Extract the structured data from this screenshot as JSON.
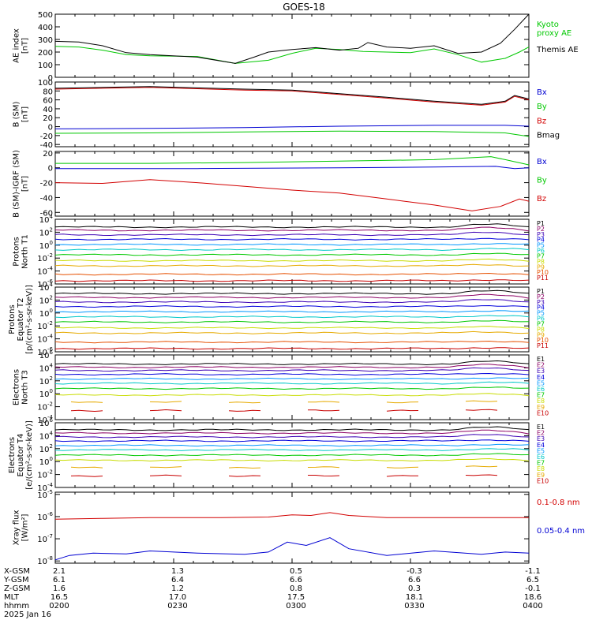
{
  "title": "GOES-18",
  "colors": {
    "black": "#000000",
    "green": "#00c800",
    "blue": "#0000d2",
    "red": "#d20000",
    "P": [
      "#000000",
      "#8c0064",
      "#3c00b4",
      "#0000dc",
      "#0096ff",
      "#00c8c8",
      "#00c800",
      "#c8dc00",
      "#e6aa00",
      "#e65000",
      "#c80000"
    ],
    "E": [
      "#000000",
      "#8c0064",
      "#3c00b4",
      "#0000dc",
      "#0096ff",
      "#00c8c8",
      "#00c800",
      "#c8dc00",
      "#e6aa00",
      "#c80000"
    ]
  },
  "x_axis": {
    "rows": [
      {
        "label": "X-GSM",
        "values": [
          "2.1",
          "1.3",
          "0.5",
          "-0.3",
          "-1.1"
        ]
      },
      {
        "label": "Y-GSM",
        "values": [
          "6.1",
          "6.4",
          "6.6",
          "6.6",
          "6.5"
        ]
      },
      {
        "label": "Z-GSM",
        "values": [
          "1.6",
          "1.2",
          "0.8",
          "0.3",
          "-0.1"
        ]
      },
      {
        "label": "MLT",
        "values": [
          "16.5",
          "17.0",
          "17.5",
          "18.1",
          "18.6"
        ]
      },
      {
        "label": "hhmm",
        "values": [
          "0200",
          "0230",
          "0300",
          "0330",
          "0400"
        ]
      }
    ],
    "date": "2025 Jan 16"
  },
  "chart_data": [
    {
      "type": "line",
      "ylabel": "AE index\n[nT]",
      "ylim": [
        0,
        500
      ],
      "yticks": [
        "0",
        "100",
        "200",
        "300",
        "400",
        "500"
      ],
      "legend": [
        "Kyoto\nproxy AE",
        "Themis AE"
      ],
      "series": [
        {
          "name": "Kyoto proxy AE",
          "color": "green",
          "values": [
            [
              0,
              245
            ],
            [
              0.05,
              240
            ],
            [
              0.1,
              215
            ],
            [
              0.15,
              180
            ],
            [
              0.2,
              170
            ],
            [
              0.3,
              165
            ],
            [
              0.38,
              110
            ],
            [
              0.45,
              135
            ],
            [
              0.5,
              190
            ],
            [
              0.55,
              230
            ],
            [
              0.6,
              220
            ],
            [
              0.65,
              205
            ],
            [
              0.7,
              200
            ],
            [
              0.75,
              195
            ],
            [
              0.8,
              225
            ],
            [
              0.85,
              180
            ],
            [
              0.9,
              120
            ],
            [
              0.95,
              150
            ],
            [
              0.98,
              200
            ],
            [
              1,
              240
            ]
          ]
        },
        {
          "name": "Themis AE",
          "color": "black",
          "values": [
            [
              0,
              285
            ],
            [
              0.05,
              280
            ],
            [
              0.1,
              250
            ],
            [
              0.15,
              195
            ],
            [
              0.2,
              180
            ],
            [
              0.3,
              160
            ],
            [
              0.38,
              110
            ],
            [
              0.42,
              160
            ],
            [
              0.45,
              200
            ],
            [
              0.5,
              220
            ],
            [
              0.55,
              235
            ],
            [
              0.6,
              215
            ],
            [
              0.64,
              230
            ],
            [
              0.66,
              275
            ],
            [
              0.7,
              240
            ],
            [
              0.75,
              230
            ],
            [
              0.8,
              250
            ],
            [
              0.85,
              190
            ],
            [
              0.9,
              200
            ],
            [
              0.94,
              270
            ],
            [
              0.97,
              380
            ],
            [
              1,
              500
            ]
          ]
        }
      ]
    },
    {
      "type": "line",
      "ylabel": "B (SM)\n[nT]",
      "ylim": [
        -45,
        100
      ],
      "yticks": [
        "-40",
        "-20",
        "0",
        "20",
        "40",
        "60",
        "80",
        "100"
      ],
      "legend": [
        "Bx",
        "By",
        "Bz",
        "Bmag"
      ],
      "series": [
        {
          "name": "Bx",
          "color": "blue",
          "values": [
            [
              0,
              -5
            ],
            [
              0.2,
              -4
            ],
            [
              0.4,
              -2
            ],
            [
              0.6,
              1
            ],
            [
              0.8,
              3
            ],
            [
              0.95,
              3
            ],
            [
              1,
              1
            ]
          ]
        },
        {
          "name": "By",
          "color": "green",
          "values": [
            [
              0,
              -15
            ],
            [
              0.2,
              -14
            ],
            [
              0.4,
              -12
            ],
            [
              0.6,
              -10
            ],
            [
              0.8,
              -11
            ],
            [
              0.95,
              -14
            ],
            [
              1,
              -22
            ]
          ]
        },
        {
          "name": "Bz",
          "color": "red",
          "values": [
            [
              0,
              84
            ],
            [
              0.1,
              86
            ],
            [
              0.2,
              88
            ],
            [
              0.3,
              85
            ],
            [
              0.4,
              82
            ],
            [
              0.5,
              80
            ],
            [
              0.6,
              72
            ],
            [
              0.7,
              64
            ],
            [
              0.8,
              55
            ],
            [
              0.9,
              48
            ],
            [
              0.95,
              55
            ],
            [
              0.97,
              68
            ],
            [
              1,
              60
            ]
          ]
        },
        {
          "name": "Bmag",
          "color": "black",
          "values": [
            [
              0,
              86
            ],
            [
              0.1,
              88
            ],
            [
              0.2,
              90
            ],
            [
              0.3,
              87
            ],
            [
              0.4,
              84
            ],
            [
              0.5,
              82
            ],
            [
              0.6,
              74
            ],
            [
              0.7,
              66
            ],
            [
              0.8,
              57
            ],
            [
              0.9,
              50
            ],
            [
              0.95,
              57
            ],
            [
              0.97,
              70
            ],
            [
              1,
              62
            ]
          ]
        }
      ]
    },
    {
      "type": "line",
      "ylabel": "B (SM)-IGRF (SM)\n[nT]",
      "ylim": [
        -65,
        22
      ],
      "yticks": [
        "-60",
        "-40",
        "-20",
        "0",
        "20"
      ],
      "legend": [
        "Bx",
        "By",
        "Bz"
      ],
      "series": [
        {
          "name": "Bx",
          "color": "blue",
          "values": [
            [
              0,
              -1
            ],
            [
              0.3,
              -1
            ],
            [
              0.6,
              0
            ],
            [
              0.8,
              1
            ],
            [
              0.93,
              2
            ],
            [
              0.97,
              -1
            ],
            [
              1,
              0
            ]
          ]
        },
        {
          "name": "By",
          "color": "green",
          "values": [
            [
              0,
              6
            ],
            [
              0.2,
              6
            ],
            [
              0.4,
              7
            ],
            [
              0.6,
              9
            ],
            [
              0.8,
              11
            ],
            [
              0.92,
              15
            ],
            [
              0.95,
              11
            ],
            [
              1,
              4
            ]
          ]
        },
        {
          "name": "Bz",
          "color": "red",
          "values": [
            [
              0,
              -20
            ],
            [
              0.1,
              -21
            ],
            [
              0.2,
              -16
            ],
            [
              0.3,
              -20
            ],
            [
              0.4,
              -25
            ],
            [
              0.5,
              -30
            ],
            [
              0.6,
              -34
            ],
            [
              0.7,
              -42
            ],
            [
              0.8,
              -50
            ],
            [
              0.88,
              -58
            ],
            [
              0.94,
              -52
            ],
            [
              0.98,
              -42
            ],
            [
              1,
              -45
            ]
          ]
        }
      ]
    },
    {
      "type": "line",
      "ylabel": "Protons\nNorth T1",
      "yscale": "log",
      "ylim": [
        -6,
        4
      ],
      "yticks": [
        "10^4",
        "10^2",
        "10^0",
        "10^-2",
        "10^-4",
        "10^-6"
      ],
      "legend": [
        "P1",
        "P2",
        "P3",
        "P4",
        "P5",
        "P6",
        "P7",
        "P8",
        "P9",
        "P10",
        "P11"
      ],
      "series_levels": [
        2.8,
        2.3,
        1.6,
        0.9,
        0.1,
        -0.7,
        -1.5,
        -2.4,
        -3.2,
        -4.5,
        -5.5
      ]
    },
    {
      "type": "line",
      "ylabel": "Protons\nEquator T2\n[p/(cm²-s-sr-keV)]",
      "yscale": "log",
      "ylim": [
        -6,
        4
      ],
      "yticks": [
        "10^4",
        "10^2",
        "10^0",
        "10^-2",
        "10^-4",
        "10^-6"
      ],
      "legend": [
        "P1",
        "P2",
        "P3",
        "P4",
        "P5",
        "P6",
        "P7",
        "P8",
        "P9",
        "P10",
        "P11"
      ],
      "series_levels": [
        3.0,
        2.4,
        1.7,
        1.0,
        0.2,
        -0.6,
        -1.4,
        -2.3,
        -3.1,
        -4.5,
        -5.5
      ]
    },
    {
      "type": "line",
      "ylabel": "Electrons\nNorth T3",
      "yscale": "log",
      "ylim": [
        -4,
        6
      ],
      "yticks": [
        "10^6",
        "10^4",
        "10^2",
        "10^0",
        "10^-2",
        "10^-4"
      ],
      "legend": [
        "E1",
        "E2",
        "E3",
        "E4",
        "E5",
        "E6",
        "E7",
        "E8",
        "E9",
        "E10"
      ],
      "series_levels": [
        4.6,
        4.1,
        3.6,
        3.0,
        2.3,
        1.6,
        0.8,
        -0.2,
        -1.3,
        -2.6
      ]
    },
    {
      "type": "line",
      "ylabel": "Electrons\nEquator T4\n[e/(cm²-s-sr-keV)]",
      "yscale": "log",
      "ylim": [
        -4,
        6
      ],
      "yticks": [
        "10^6",
        "10^4",
        "10^2",
        "10^0",
        "10^-2",
        "10^-4"
      ],
      "legend": [
        "E1",
        "E2",
        "E3",
        "E4",
        "E5",
        "E6",
        "E7",
        "E8",
        "E9",
        "E10"
      ],
      "series_levels": [
        4.9,
        4.4,
        3.8,
        3.2,
        2.5,
        1.8,
        1.0,
        0.2,
        -0.9,
        -2.2
      ]
    },
    {
      "type": "line",
      "ylabel": "Xray flux\n[W/m²]",
      "yscale": "log",
      "ylim": [
        -8.1,
        -4.9
      ],
      "yticks": [
        "10^-5",
        "10^-6",
        "10^-7",
        "10^-8"
      ],
      "legend": [
        "0.1-0.8 nm",
        "0.05-0.4 nm"
      ],
      "series": [
        {
          "name": "0.1-0.8 nm",
          "color": "red",
          "values": [
            [
              0,
              -6.12
            ],
            [
              0.1,
              -6.08
            ],
            [
              0.2,
              -6.05
            ],
            [
              0.35,
              -6.05
            ],
            [
              0.45,
              -6.02
            ],
            [
              0.5,
              -5.92
            ],
            [
              0.54,
              -5.95
            ],
            [
              0.58,
              -5.82
            ],
            [
              0.62,
              -5.95
            ],
            [
              0.7,
              -6.05
            ],
            [
              0.85,
              -6.05
            ],
            [
              1,
              -6.05
            ]
          ]
        },
        {
          "name": "0.05-0.4 nm",
          "color": "blue",
          "values": [
            [
              0,
              -7.95
            ],
            [
              0.03,
              -7.75
            ],
            [
              0.08,
              -7.65
            ],
            [
              0.15,
              -7.68
            ],
            [
              0.2,
              -7.55
            ],
            [
              0.3,
              -7.65
            ],
            [
              0.4,
              -7.7
            ],
            [
              0.45,
              -7.6
            ],
            [
              0.49,
              -7.15
            ],
            [
              0.53,
              -7.3
            ],
            [
              0.58,
              -6.95
            ],
            [
              0.62,
              -7.45
            ],
            [
              0.7,
              -7.75
            ],
            [
              0.8,
              -7.55
            ],
            [
              0.9,
              -7.7
            ],
            [
              0.95,
              -7.6
            ],
            [
              1,
              -7.65
            ]
          ]
        }
      ]
    }
  ]
}
